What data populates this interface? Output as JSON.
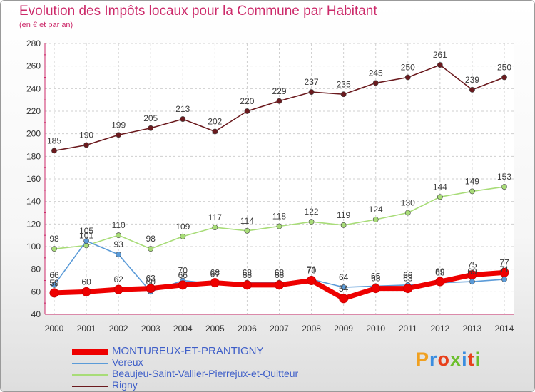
{
  "title": "Evolution des Impôts locaux pour la Commune par Habitant",
  "subtitle": "(en € et par an)",
  "logo": {
    "text": "Proxiti",
    "letter_colors": [
      "#f0a020",
      "#3a8de0",
      "#e8401c",
      "#6cbf2c",
      "#3a8de0",
      "#e8401c",
      "#6cbf2c"
    ]
  },
  "chart_data": {
    "type": "line",
    "x": [
      "2000",
      "2001",
      "2002",
      "2003",
      "2004",
      "2005",
      "2006",
      "2007",
      "2008",
      "2009",
      "2010",
      "2011",
      "2012",
      "2013",
      "2014"
    ],
    "ylim": [
      40,
      280
    ],
    "yticks": [
      "40",
      "60",
      "80",
      "100",
      "120",
      "140",
      "160",
      "180",
      "200",
      "220",
      "240",
      "260",
      "280"
    ],
    "grid": true,
    "legend_position": "bottom-left",
    "series": [
      {
        "name": "MONTUREUX-ET-PRANTIGNY",
        "color": "#ee0000",
        "values": [
          59,
          60,
          62,
          63,
          66,
          68,
          66,
          66,
          70,
          54,
          63,
          63,
          69,
          75,
          77
        ],
        "labels": [
          "59",
          "60",
          "62",
          "63",
          "66",
          "68",
          "66",
          "66",
          "70",
          "54",
          "63",
          "63",
          "69",
          "75",
          "77"
        ]
      },
      {
        "name": "Vereux",
        "color": "#5b9bd8",
        "values": [
          66,
          105,
          93,
          60,
          70,
          67,
          68,
          68,
          71,
          64,
          65,
          66,
          68,
          69,
          71
        ],
        "labels": [
          "66",
          "105",
          "93",
          "60",
          "70",
          "67",
          "68",
          "68",
          "71",
          "64",
          "65",
          "66",
          "68",
          "69",
          "71"
        ]
      },
      {
        "name": "Beaujeu-Saint-Vallier-Pierrejux-et-Quitteur",
        "color": "#a8dc78",
        "values": [
          98,
          101,
          110,
          98,
          109,
          117,
          114,
          118,
          122,
          119,
          124,
          130,
          144,
          149,
          153
        ],
        "labels": [
          "98",
          "101",
          "110",
          "98",
          "109",
          "117",
          "114",
          "118",
          "122",
          "119",
          "124",
          "130",
          "144",
          "149",
          "153"
        ]
      },
      {
        "name": "Rigny",
        "color": "#6b1a1e",
        "values": [
          185,
          190,
          199,
          205,
          213,
          202,
          220,
          229,
          237,
          235,
          245,
          250,
          261,
          239,
          250
        ],
        "labels": [
          "185",
          "190",
          "199",
          "205",
          "213",
          "202",
          "220",
          "229",
          "237",
          "235",
          "245",
          "250",
          "261",
          "239",
          "250"
        ]
      }
    ]
  }
}
